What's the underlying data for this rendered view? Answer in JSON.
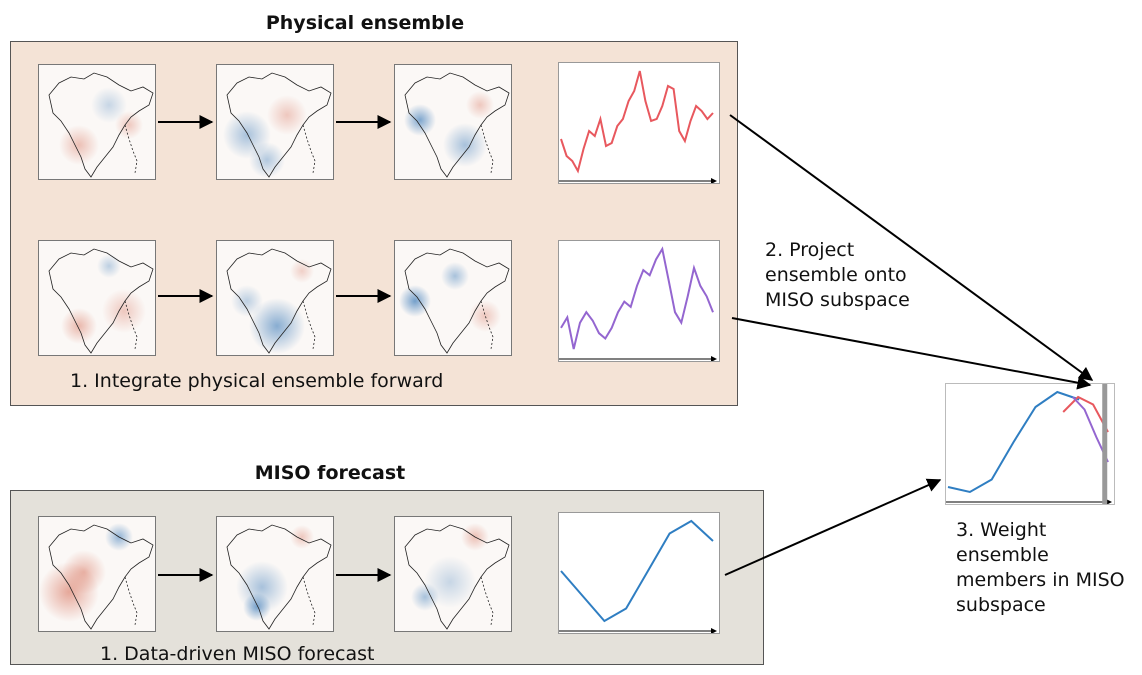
{
  "physical": {
    "title": "Physical ensemble",
    "step_caption": "1. Integrate physical ensemble forward",
    "member_colors": [
      "#e8585e",
      "#9466d0"
    ]
  },
  "projection": {
    "lines": [
      "2. Project",
      "ensemble onto",
      "MISO subspace"
    ]
  },
  "miso": {
    "title": "MISO forecast",
    "step_caption": "1. Data-driven MISO forecast",
    "line_color": "#2f7ec2"
  },
  "weighting": {
    "lines": [
      "3. Weight ensemble",
      "members in MISO",
      "subspace"
    ]
  },
  "map_colors": {
    "positive": "#d0563c",
    "negative": "#2a6fb3",
    "outline": "#222222"
  },
  "chart_data": [
    {
      "type": "line",
      "id": "member-1",
      "series": [
        {
          "values": [
            0.42,
            0.25,
            0.2,
            0.1,
            0.32,
            0.5,
            0.45,
            0.62,
            0.35,
            0.38,
            0.55,
            0.62,
            0.8,
            0.9,
            1.1,
            0.8,
            0.6,
            0.62,
            0.75,
            0.95,
            0.92,
            0.5,
            0.4,
            0.6,
            0.75,
            0.7,
            0.62,
            0.68
          ]
        }
      ],
      "xlabel": "",
      "ylabel": ""
    },
    {
      "type": "line",
      "id": "member-2",
      "series": [
        {
          "values": [
            0.35,
            0.45,
            0.15,
            0.4,
            0.5,
            0.42,
            0.3,
            0.25,
            0.35,
            0.5,
            0.6,
            0.55,
            0.75,
            0.9,
            0.85,
            1.0,
            1.1,
            0.8,
            0.5,
            0.4,
            0.65,
            0.92,
            0.75,
            0.65,
            0.5
          ]
        }
      ],
      "xlabel": "",
      "ylabel": ""
    },
    {
      "type": "line",
      "id": "miso-forecast",
      "series": [
        {
          "values": [
            0.0,
            -0.5,
            -1.0,
            -0.75,
            0.0,
            0.75,
            1.0,
            0.6
          ]
        }
      ],
      "xlabel": "",
      "ylabel": ""
    },
    {
      "type": "line",
      "id": "weighted-ensemble",
      "series": [
        {
          "values": [
            -0.9,
            -1.0,
            -0.75,
            0.0,
            0.7,
            1.0,
            0.85
          ]
        },
        {
          "values": [
            0.6,
            0.9,
            0.75,
            0.2
          ]
        },
        {
          "values": [
            0.9,
            0.65,
            0.1,
            -0.4
          ]
        }
      ],
      "xlabel": "",
      "ylabel": ""
    }
  ]
}
